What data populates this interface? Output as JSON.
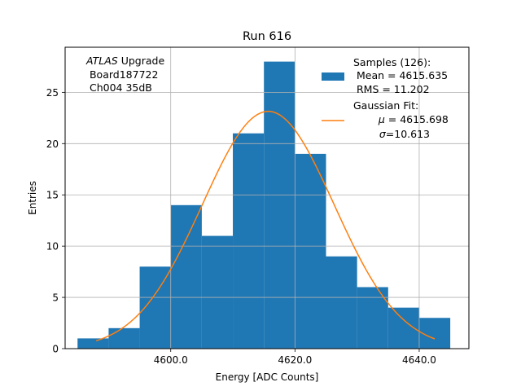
{
  "chart_data": {
    "type": "bar",
    "title": "Run 616",
    "xlabel": "Energy [ADC Counts]",
    "ylabel": "Entries",
    "xlim": [
      4583.0,
      4648.0
    ],
    "ylim": [
      0,
      29.4
    ],
    "xticks": [
      4600.0,
      4620.0,
      4640.0
    ],
    "xtick_labels": [
      "4600.0",
      "4620.0",
      "4640.0"
    ],
    "yticks": [
      0,
      5,
      10,
      15,
      20,
      25
    ],
    "yticks_labels": [
      "0",
      "5",
      "10",
      "15",
      "20",
      "25"
    ],
    "grid": true,
    "bins": [
      4585.0,
      4590.0,
      4595.0,
      4600.0,
      4605.0,
      4610.0,
      4615.0,
      4620.0,
      4625.0,
      4630.0,
      4635.0,
      4640.0,
      4645.0
    ],
    "counts": [
      1,
      2,
      8,
      14,
      11,
      21,
      28,
      19,
      9,
      6,
      4,
      3
    ],
    "bar_color": "#1f77b4",
    "fit": {
      "mu": 4615.698,
      "sigma": 10.613,
      "amplitude": 23.15,
      "x_range": [
        4588.0,
        4642.5
      ],
      "color": "#ff7f0e"
    },
    "annotation": {
      "line1_italic": "ATLAS",
      "line1_rest": " Upgrade",
      "line2": " Board187722",
      "line3": " Ch004 35dB"
    },
    "legend": {
      "position": "top-right",
      "hist_title": "Samples (126):",
      "hist_mean": " Mean = 4615.635",
      "hist_rms": " RMS = 11.202",
      "fit_title": "Gaussian Fit:",
      "fit_mu_symbol": "μ",
      "fit_mu_rest": " = 4615.698",
      "fit_sigma_symbol": "σ",
      "fit_sigma_rest": "=10.613"
    }
  }
}
